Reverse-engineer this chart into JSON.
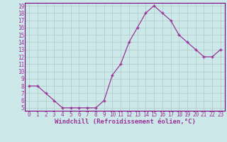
{
  "x": [
    0,
    1,
    2,
    3,
    4,
    5,
    6,
    7,
    8,
    9,
    10,
    11,
    12,
    13,
    14,
    15,
    16,
    17,
    18,
    19,
    20,
    21,
    22,
    23
  ],
  "y": [
    8,
    8,
    7,
    6,
    5,
    5,
    5,
    5,
    5,
    6,
    9.5,
    11,
    14,
    16,
    18,
    19,
    18,
    17,
    15,
    14,
    13,
    12,
    12,
    13
  ],
  "ylim_min": 5,
  "ylim_max": 19,
  "xlim_min": 0,
  "xlim_max": 23,
  "yticks": [
    5,
    6,
    7,
    8,
    9,
    10,
    11,
    12,
    13,
    14,
    15,
    16,
    17,
    18,
    19
  ],
  "xticks": [
    0,
    1,
    2,
    3,
    4,
    5,
    6,
    7,
    8,
    9,
    10,
    11,
    12,
    13,
    14,
    15,
    16,
    17,
    18,
    19,
    20,
    21,
    22,
    23
  ],
  "xlabel": "Windchill (Refroidissement éolien,°C)",
  "line_color": "#993399",
  "marker": "P",
  "bg_color": "#cce8e8",
  "grid_color": "#b0c8c8",
  "spine_color": "#800080",
  "tick_fontsize": 5.5,
  "xlabel_fontsize": 6.5
}
